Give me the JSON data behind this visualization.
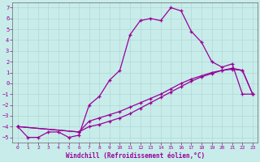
{
  "xlabel": "Windchill (Refroidissement éolien,°C)",
  "bg_color": "#c8ecea",
  "line_color": "#990099",
  "grid_color": "#b0d8d4",
  "ylim": [
    -5.5,
    7.5
  ],
  "xlim": [
    -0.5,
    23.5
  ],
  "yticks": [
    -5,
    -4,
    -3,
    -2,
    -1,
    0,
    1,
    2,
    3,
    4,
    5,
    6,
    7
  ],
  "xticks": [
    0,
    1,
    2,
    3,
    4,
    5,
    6,
    7,
    8,
    9,
    10,
    11,
    12,
    13,
    14,
    15,
    16,
    17,
    18,
    19,
    20,
    21,
    22,
    23
  ],
  "line1_x": [
    0,
    1,
    2,
    3,
    4,
    5,
    6,
    7,
    8,
    9,
    10,
    11,
    12,
    13,
    14,
    15,
    16,
    17,
    18,
    19,
    20,
    21,
    22,
    23
  ],
  "line1_y": [
    -4.0,
    -5.0,
    -5.0,
    -4.5,
    -4.5,
    -5.0,
    -4.8,
    -2.0,
    -1.2,
    0.3,
    1.2,
    4.5,
    5.8,
    6.0,
    5.8,
    7.0,
    6.7,
    4.8,
    3.8,
    2.0,
    1.5,
    1.8,
    -1.0,
    -1.0
  ],
  "line2_x": [
    0,
    6,
    7,
    8,
    9,
    10,
    11,
    12,
    13,
    14,
    15,
    16,
    17,
    18,
    19,
    20,
    21,
    22,
    23
  ],
  "line2_y": [
    -4.0,
    -4.5,
    -4.0,
    -3.8,
    -3.5,
    -3.2,
    -2.8,
    -2.3,
    -1.8,
    -1.3,
    -0.8,
    -0.3,
    0.2,
    0.6,
    0.9,
    1.2,
    1.3,
    1.2,
    -1.0
  ],
  "line3_x": [
    0,
    6,
    7,
    8,
    9,
    10,
    11,
    12,
    13,
    14,
    15,
    16,
    17,
    18,
    19,
    20,
    21,
    22,
    23
  ],
  "line3_y": [
    -4.0,
    -4.5,
    -3.5,
    -3.2,
    -2.9,
    -2.6,
    -2.2,
    -1.8,
    -1.4,
    -1.0,
    -0.5,
    0.0,
    0.4,
    0.7,
    1.0,
    1.2,
    1.4,
    1.2,
    -1.0
  ]
}
